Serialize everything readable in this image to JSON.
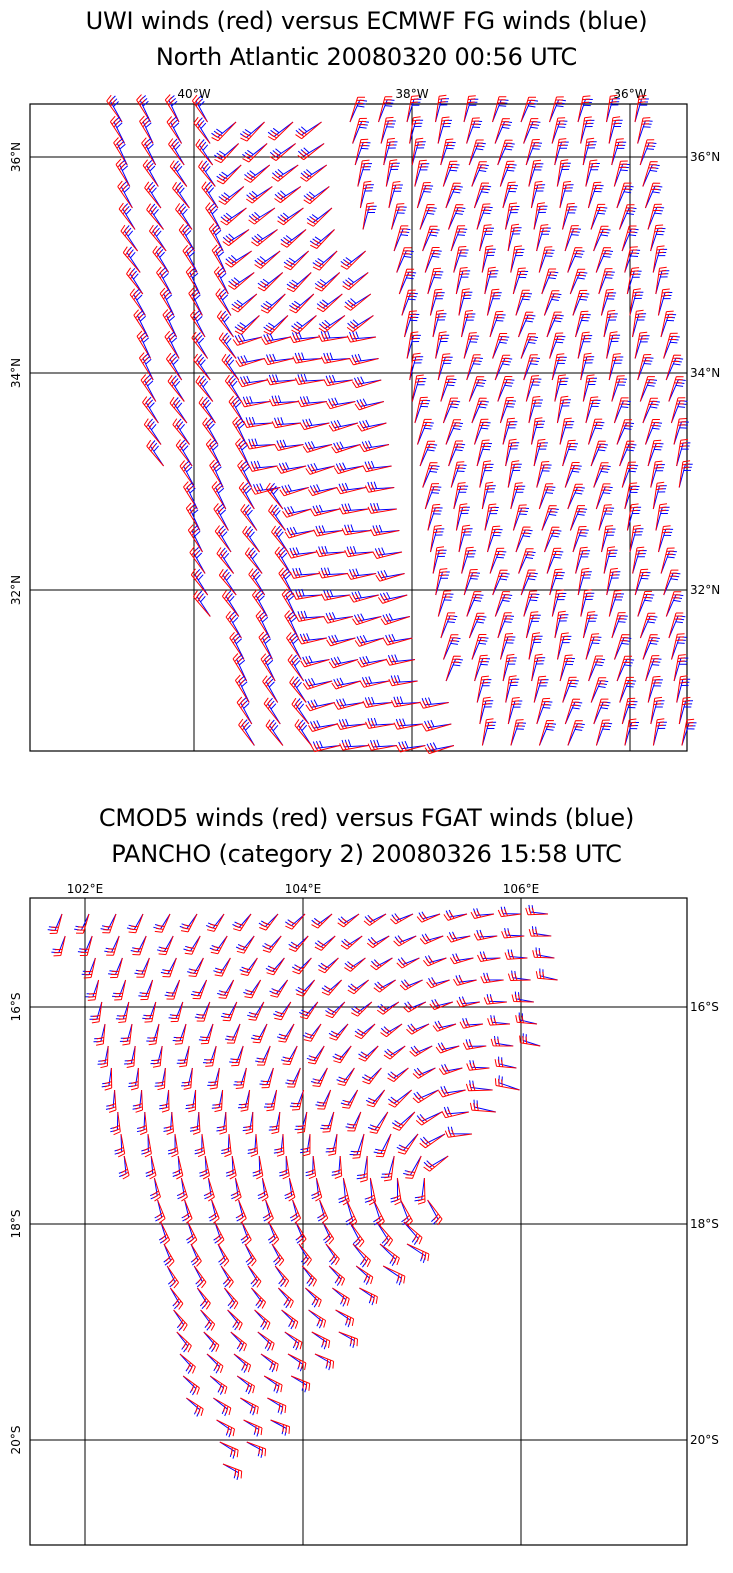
{
  "panels": [
    {
      "id": "north-atlantic",
      "title_line1": "UWI winds (red) versus ECMWF FG winds (blue)",
      "title_line2": "North Atlantic  20080320 00:56 UTC",
      "lon_labels": [
        "40°W",
        "38°W",
        "36°W"
      ],
      "lat_labels": [
        "36°N",
        "34°N",
        "32°N"
      ],
      "lat_labels_left": [
        "36°N",
        "34°N",
        "32°N"
      ],
      "barbs": {
        "red_color": "#ff0000",
        "blue_color": "#0000ff",
        "wind_field": "north-atlantic-front",
        "coverage": "swath along the scatterometer track between 30.8°N–36.5°N and 35.8°W–40.9°W"
      }
    },
    {
      "id": "pancho",
      "title_line1": "CMOD5 winds (red) versus FGAT winds (blue)",
      "title_line2": "PANCHO (category 2)  20080326 15:58 UTC",
      "lon_labels": [
        "102°E",
        "104°E",
        "106°E"
      ],
      "lat_labels": [
        "16°S",
        "18°S",
        "20°S"
      ],
      "lat_labels_left": [
        "16°S",
        "18°S",
        "20°S"
      ],
      "barbs": {
        "red_color": "#ff0000",
        "blue_color": "#0000ff",
        "wind_field": "cyclone",
        "coverage": "swath covering cyclone Pancho, centre near 17.6°S 105.6°E"
      }
    }
  ],
  "colors": {
    "frame": "#000000",
    "grid": "#000000",
    "red": "#ff0000",
    "blue": "#0000ff",
    "background": "#ffffff"
  }
}
